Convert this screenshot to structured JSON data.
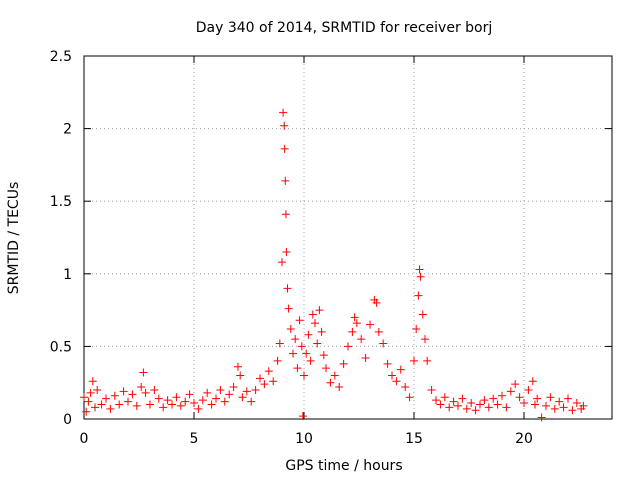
{
  "chart_data": {
    "type": "scatter",
    "title": "Day 340 of 2014, SRMTID for receiver borj",
    "xlabel": "GPS time / hours",
    "ylabel": "SRMTID / TECUs",
    "xlim": [
      0,
      24
    ],
    "ylim": [
      0,
      2.5
    ],
    "x_ticks": [
      0,
      5,
      10,
      15,
      20
    ],
    "x_tick_labels": [
      "0",
      "5",
      "10",
      "15",
      "20"
    ],
    "y_ticks": [
      0,
      0.5,
      1,
      1.5,
      2,
      2.5
    ],
    "y_tick_labels": [
      "0",
      "0.5",
      "1",
      "1.5",
      "2",
      "2.5"
    ],
    "grid": true,
    "marker": "+",
    "color": "#ff0000",
    "series": [
      {
        "name": "SRMTID",
        "points": [
          [
            0.0,
            0.15
          ],
          [
            0.1,
            0.05
          ],
          [
            0.2,
            0.12
          ],
          [
            0.3,
            0.18
          ],
          [
            0.4,
            0.26
          ],
          [
            0.5,
            0.08
          ],
          [
            0.6,
            0.2
          ],
          [
            0.8,
            0.1
          ],
          [
            1.0,
            0.14
          ],
          [
            1.2,
            0.07
          ],
          [
            1.4,
            0.16
          ],
          [
            1.6,
            0.1
          ],
          [
            1.8,
            0.19
          ],
          [
            2.0,
            0.12
          ],
          [
            2.2,
            0.17
          ],
          [
            2.4,
            0.09
          ],
          [
            2.6,
            0.22
          ],
          [
            2.7,
            0.32
          ],
          [
            2.8,
            0.18
          ],
          [
            3.0,
            0.1
          ],
          [
            3.2,
            0.2
          ],
          [
            3.4,
            0.14
          ],
          [
            3.6,
            0.08
          ],
          [
            3.8,
            0.13
          ],
          [
            4.0,
            0.1
          ],
          [
            4.2,
            0.15
          ],
          [
            4.4,
            0.09
          ],
          [
            4.6,
            0.12
          ],
          [
            4.8,
            0.17
          ],
          [
            5.0,
            0.11
          ],
          [
            5.2,
            0.07
          ],
          [
            5.4,
            0.13
          ],
          [
            5.6,
            0.18
          ],
          [
            5.8,
            0.1
          ],
          [
            6.0,
            0.14
          ],
          [
            6.2,
            0.2
          ],
          [
            6.4,
            0.12
          ],
          [
            6.6,
            0.17
          ],
          [
            6.8,
            0.22
          ],
          [
            7.0,
            0.36
          ],
          [
            7.1,
            0.3
          ],
          [
            7.2,
            0.15
          ],
          [
            7.4,
            0.19
          ],
          [
            7.6,
            0.12
          ],
          [
            7.8,
            0.2
          ],
          [
            8.0,
            0.28
          ],
          [
            8.2,
            0.24
          ],
          [
            8.4,
            0.33
          ],
          [
            8.6,
            0.26
          ],
          [
            8.8,
            0.4
          ],
          [
            8.9,
            0.52
          ],
          [
            9.0,
            1.08
          ],
          [
            9.05,
            2.11
          ],
          [
            9.1,
            2.02
          ],
          [
            9.12,
            1.86
          ],
          [
            9.15,
            1.64
          ],
          [
            9.18,
            1.41
          ],
          [
            9.2,
            1.15
          ],
          [
            9.25,
            0.9
          ],
          [
            9.3,
            0.76
          ],
          [
            9.4,
            0.62
          ],
          [
            9.5,
            0.45
          ],
          [
            9.6,
            0.55
          ],
          [
            9.7,
            0.35
          ],
          [
            9.8,
            0.68
          ],
          [
            9.9,
            0.5
          ],
          [
            9.95,
            0.02
          ],
          [
            10.0,
            0.3
          ],
          [
            10.1,
            0.45
          ],
          [
            10.2,
            0.58
          ],
          [
            10.3,
            0.4
          ],
          [
            10.4,
            0.72
          ],
          [
            10.5,
            0.66
          ],
          [
            10.6,
            0.52
          ],
          [
            10.7,
            0.75
          ],
          [
            10.8,
            0.6
          ],
          [
            10.9,
            0.44
          ],
          [
            11.0,
            0.35
          ],
          [
            11.2,
            0.25
          ],
          [
            11.4,
            0.3
          ],
          [
            11.6,
            0.22
          ],
          [
            11.8,
            0.38
          ],
          [
            12.0,
            0.5
          ],
          [
            12.2,
            0.6
          ],
          [
            12.3,
            0.7
          ],
          [
            12.4,
            0.66
          ],
          [
            12.6,
            0.55
          ],
          [
            12.8,
            0.42
          ],
          [
            13.0,
            0.65
          ],
          [
            13.2,
            0.82
          ],
          [
            13.3,
            0.8
          ],
          [
            13.4,
            0.6
          ],
          [
            13.6,
            0.52
          ],
          [
            13.8,
            0.38
          ],
          [
            14.0,
            0.3
          ],
          [
            14.2,
            0.26
          ],
          [
            14.4,
            0.34
          ],
          [
            14.6,
            0.22
          ],
          [
            14.8,
            0.15
          ],
          [
            15.0,
            0.4
          ],
          [
            15.1,
            0.62
          ],
          [
            15.2,
            0.85
          ],
          [
            15.25,
            1.03
          ],
          [
            15.3,
            0.98
          ],
          [
            15.4,
            0.72
          ],
          [
            15.5,
            0.55
          ],
          [
            15.6,
            0.4
          ],
          [
            15.8,
            0.2
          ],
          [
            16.0,
            0.13
          ],
          [
            16.2,
            0.1
          ],
          [
            16.4,
            0.15
          ],
          [
            16.6,
            0.08
          ],
          [
            16.8,
            0.12
          ],
          [
            17.0,
            0.09
          ],
          [
            17.2,
            0.14
          ],
          [
            17.4,
            0.07
          ],
          [
            17.6,
            0.11
          ],
          [
            17.8,
            0.06
          ],
          [
            18.0,
            0.1
          ],
          [
            18.2,
            0.13
          ],
          [
            18.4,
            0.08
          ],
          [
            18.6,
            0.14
          ],
          [
            18.8,
            0.1
          ],
          [
            19.0,
            0.16
          ],
          [
            19.2,
            0.08
          ],
          [
            19.4,
            0.19
          ],
          [
            19.6,
            0.24
          ],
          [
            19.8,
            0.15
          ],
          [
            20.0,
            0.11
          ],
          [
            20.2,
            0.2
          ],
          [
            20.4,
            0.26
          ],
          [
            20.5,
            0.1
          ],
          [
            20.6,
            0.14
          ],
          [
            20.8,
            0.01
          ],
          [
            21.0,
            0.09
          ],
          [
            21.2,
            0.15
          ],
          [
            21.4,
            0.07
          ],
          [
            21.6,
            0.12
          ],
          [
            21.8,
            0.08
          ],
          [
            22.0,
            0.14
          ],
          [
            22.2,
            0.06
          ],
          [
            22.4,
            0.11
          ],
          [
            22.6,
            0.07
          ],
          [
            22.7,
            0.09
          ]
        ]
      }
    ]
  }
}
